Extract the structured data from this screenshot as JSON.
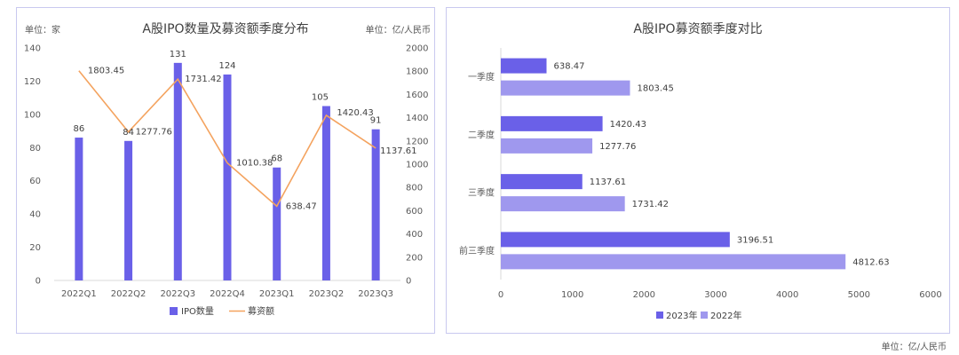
{
  "footer_unit": "单位：亿/人民币",
  "chart_data": [
    {
      "type": "bar",
      "title": "A股IPO数量及募资额季度分布",
      "left_unit": "单位：家",
      "right_unit": "单位：亿/人民币",
      "categories": [
        "2022Q1",
        "2022Q2",
        "2022Q3",
        "2022Q4",
        "2023Q1",
        "2023Q2",
        "2023Q3"
      ],
      "series": [
        {
          "name": "IPO数量",
          "type": "bar",
          "axis": "left",
          "color": "#6a60e8",
          "values": [
            86,
            84,
            131,
            124,
            68,
            105,
            91
          ]
        },
        {
          "name": "募资额",
          "type": "line",
          "axis": "right",
          "color": "#f4a35f",
          "values": [
            1803.45,
            1277.76,
            1731.42,
            1010.38,
            638.47,
            1420.43,
            1137.61
          ]
        }
      ],
      "ylim_left": [
        0,
        140
      ],
      "yticks_left": [
        0,
        20,
        40,
        60,
        80,
        100,
        120,
        140
      ],
      "ylim_right": [
        0,
        2000
      ],
      "yticks_right": [
        0,
        200,
        400,
        600,
        800,
        1000,
        1200,
        1400,
        1600,
        1800,
        2000
      ],
      "legend_position": "bottom",
      "grid": false
    },
    {
      "type": "bar",
      "orientation": "horizontal",
      "title": "A股IPO募资额季度对比",
      "categories": [
        "一季度",
        "二季度",
        "三季度",
        "前三季度"
      ],
      "series": [
        {
          "name": "2023年",
          "color": "#6a60e8",
          "values": [
            638.47,
            1420.43,
            1137.61,
            3196.51
          ]
        },
        {
          "name": "2022年",
          "color": "#9f98ee",
          "values": [
            1803.45,
            1277.76,
            1731.42,
            4812.63
          ]
        }
      ],
      "xlim": [
        0,
        6000
      ],
      "xticks": [
        0,
        1000,
        2000,
        3000,
        4000,
        5000,
        6000
      ],
      "legend_position": "bottom",
      "grid": false
    }
  ]
}
